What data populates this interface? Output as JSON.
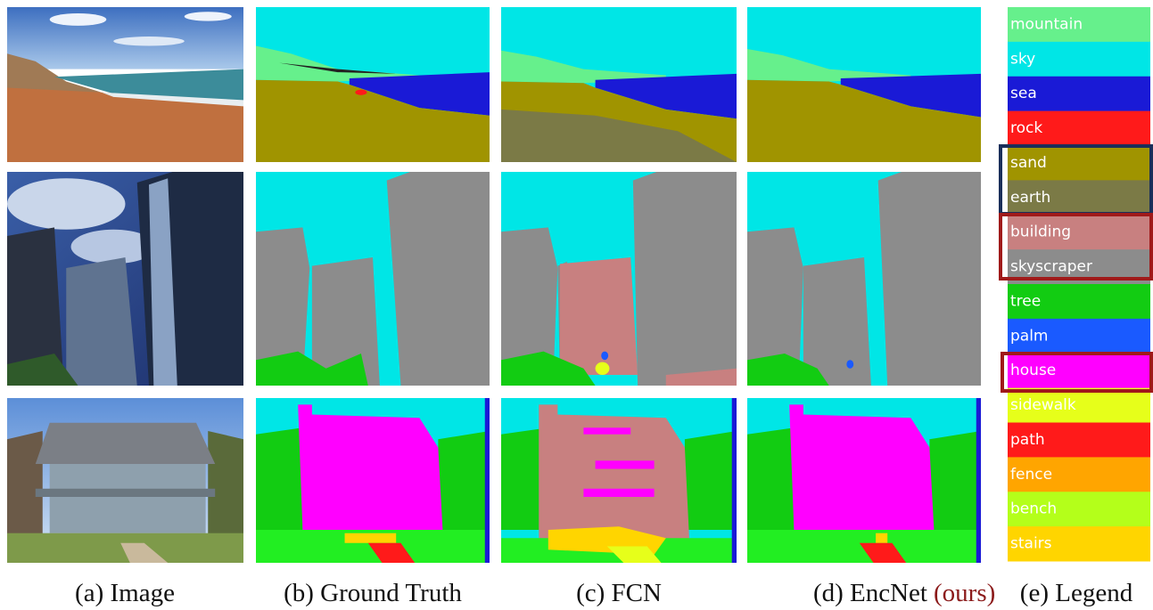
{
  "captions": {
    "image": "(a) Image",
    "ground_truth": "(b) Ground Truth",
    "fcn": "(c) FCN",
    "encnet": "(d) EncNet",
    "encnet_note": "(ours)",
    "legend": "(e) Legend"
  },
  "legend": [
    {
      "label": "mountain",
      "color": "#66f08c"
    },
    {
      "label": "sky",
      "color": "#00e6e6"
    },
    {
      "label": "sea",
      "color": "#1a1ad6"
    },
    {
      "label": "rock",
      "color": "#ff1a1a"
    },
    {
      "label": "sand",
      "color": "#a09400"
    },
    {
      "label": "earth",
      "color": "#7b7a46"
    },
    {
      "label": "building",
      "color": "#c88080"
    },
    {
      "label": "skyscraper",
      "color": "#8c8c8c"
    },
    {
      "label": "tree",
      "color": "#12cc12"
    },
    {
      "label": "palm",
      "color": "#1a5aff"
    },
    {
      "label": "house",
      "color": "#ff00ff"
    },
    {
      "label": "sidewalk",
      "color": "#e6ff1a"
    },
    {
      "label": "path",
      "color": "#ff1a1a"
    },
    {
      "label": "fence",
      "color": "#ffa500"
    },
    {
      "label": "bench",
      "color": "#b4ff1a"
    },
    {
      "label": "stairs",
      "color": "#ffd500"
    }
  ]
}
